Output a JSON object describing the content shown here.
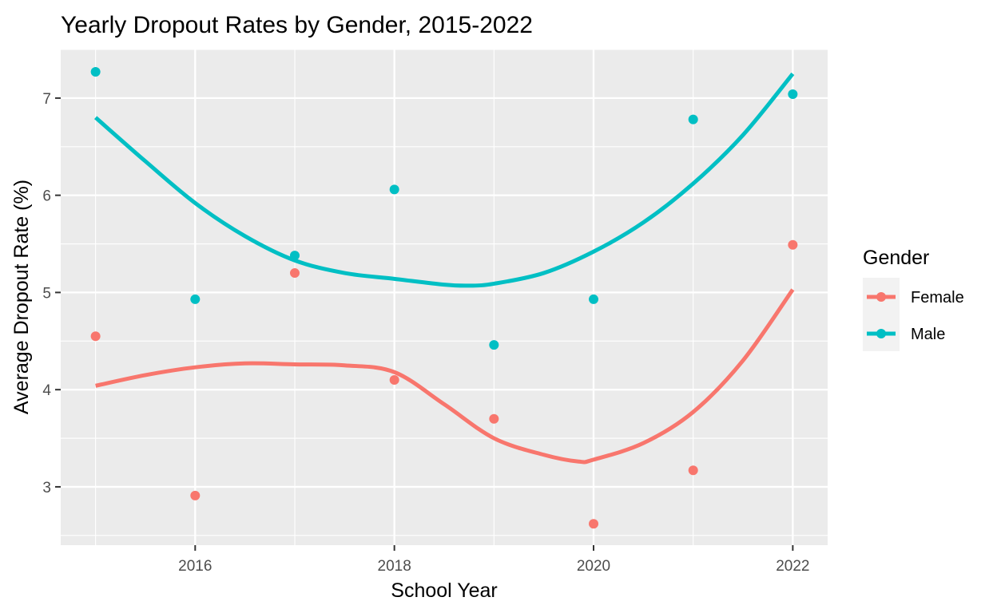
{
  "chart_data": {
    "type": "scatter",
    "title": "Yearly Dropout Rates by Gender, 2015-2022",
    "xlabel": "School Year",
    "ylabel": "Average Dropout Rate (%)",
    "xlim": [
      2014.65,
      2022.35
    ],
    "ylim": [
      2.4,
      7.5
    ],
    "x_ticks": [
      2016,
      2018,
      2020,
      2022
    ],
    "x_tick_labels": [
      "2016",
      "2018",
      "2020",
      "2022"
    ],
    "y_ticks": [
      3,
      4,
      5,
      6,
      7
    ],
    "y_tick_labels": [
      "3",
      "4",
      "5",
      "6",
      "7"
    ],
    "grid": true,
    "legend": {
      "title": "Gender",
      "placement": "right"
    },
    "series": [
      {
        "name": "Female",
        "color": "#f8766d",
        "points": [
          {
            "x": 2015,
            "y": 4.55
          },
          {
            "x": 2016,
            "y": 2.91
          },
          {
            "x": 2017,
            "y": 5.2
          },
          {
            "x": 2018,
            "y": 4.1
          },
          {
            "x": 2019,
            "y": 3.7
          },
          {
            "x": 2020,
            "y": 2.62
          },
          {
            "x": 2021,
            "y": 3.17
          },
          {
            "x": 2022,
            "y": 5.49
          }
        ],
        "smooth": [
          {
            "x": 2015,
            "y": 4.04
          },
          {
            "x": 2015.5,
            "y": 4.15
          },
          {
            "x": 2016,
            "y": 4.23
          },
          {
            "x": 2016.5,
            "y": 4.27
          },
          {
            "x": 2017,
            "y": 4.26
          },
          {
            "x": 2017.5,
            "y": 4.25
          },
          {
            "x": 2018,
            "y": 4.18
          },
          {
            "x": 2018.5,
            "y": 3.85
          },
          {
            "x": 2019,
            "y": 3.5
          },
          {
            "x": 2019.5,
            "y": 3.33
          },
          {
            "x": 2019.85,
            "y": 3.26
          },
          {
            "x": 2020,
            "y": 3.28
          },
          {
            "x": 2020.5,
            "y": 3.45
          },
          {
            "x": 2021,
            "y": 3.77
          },
          {
            "x": 2021.5,
            "y": 4.3
          },
          {
            "x": 2022,
            "y": 5.03
          }
        ]
      },
      {
        "name": "Male",
        "color": "#00bfc4",
        "points": [
          {
            "x": 2015,
            "y": 7.27
          },
          {
            "x": 2016,
            "y": 4.93
          },
          {
            "x": 2017,
            "y": 5.38
          },
          {
            "x": 2018,
            "y": 6.06
          },
          {
            "x": 2019,
            "y": 4.46
          },
          {
            "x": 2020,
            "y": 4.93
          },
          {
            "x": 2021,
            "y": 6.78
          },
          {
            "x": 2022,
            "y": 7.04
          }
        ],
        "smooth": [
          {
            "x": 2015,
            "y": 6.8
          },
          {
            "x": 2015.5,
            "y": 6.35
          },
          {
            "x": 2016,
            "y": 5.92
          },
          {
            "x": 2016.5,
            "y": 5.58
          },
          {
            "x": 2017,
            "y": 5.33
          },
          {
            "x": 2017.5,
            "y": 5.2
          },
          {
            "x": 2018,
            "y": 5.14
          },
          {
            "x": 2018.5,
            "y": 5.08
          },
          {
            "x": 2018.75,
            "y": 5.07
          },
          {
            "x": 2019,
            "y": 5.09
          },
          {
            "x": 2019.5,
            "y": 5.2
          },
          {
            "x": 2020,
            "y": 5.42
          },
          {
            "x": 2020.5,
            "y": 5.72
          },
          {
            "x": 2021,
            "y": 6.12
          },
          {
            "x": 2021.5,
            "y": 6.62
          },
          {
            "x": 2022,
            "y": 7.25
          }
        ]
      }
    ]
  }
}
